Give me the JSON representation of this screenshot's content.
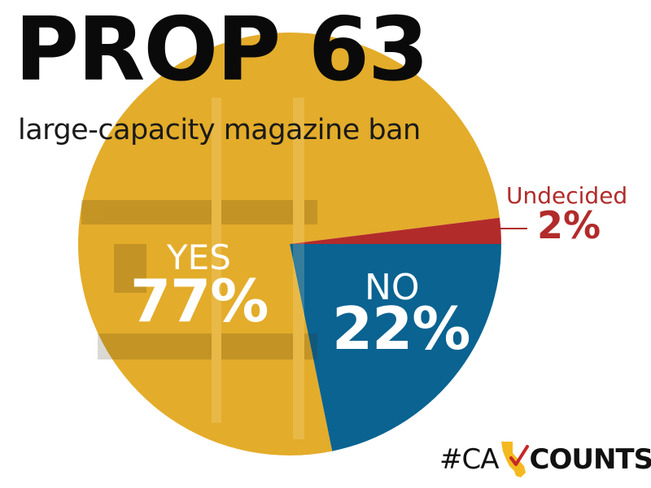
{
  "header": {
    "title": "PROP 63",
    "subtitle": "large-capacity magazine ban"
  },
  "chart_data": {
    "type": "pie",
    "title": "PROP 63",
    "subtitle": "large-capacity magazine ban",
    "slices": [
      {
        "name": "YES",
        "value": 77,
        "label": "77%",
        "color": "#e3ac2a"
      },
      {
        "name": "NO",
        "value": 22,
        "label": "22%",
        "color": "#0a6391"
      },
      {
        "name": "Undecided",
        "value": 2,
        "label": "2%",
        "color": "#b22b2b"
      }
    ]
  },
  "brand": {
    "prefix": "#CA",
    "suffix": "COUNTS",
    "icon": "california-state-icon",
    "check_icon": "checkmark-icon",
    "colors": {
      "state": "#f4b91f",
      "check": "#c62828"
    }
  }
}
